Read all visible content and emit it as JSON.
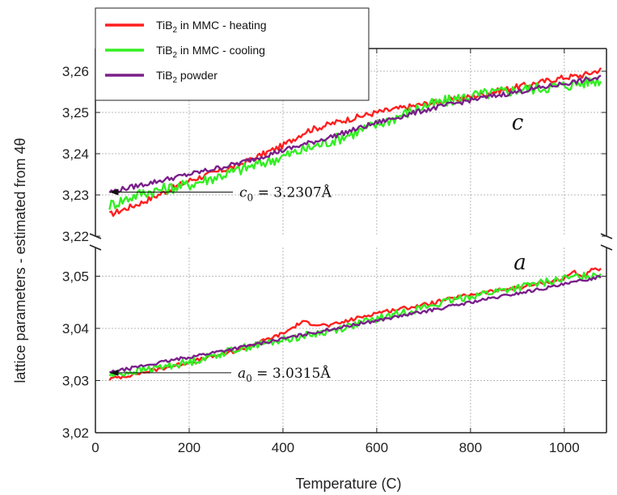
{
  "chart_data": {
    "type": "line",
    "xlabel": "Temperature (C)",
    "ylabel": "lattice parameters - estimated from 4θ",
    "xlim": [
      0,
      1090
    ],
    "x_ticks": [
      "0",
      "200",
      "400",
      "600",
      "800",
      "1000"
    ],
    "axis_break": true,
    "panels": [
      {
        "id": "c",
        "label": "c",
        "ylim": [
          3.22,
          3.2655
        ],
        "y_ticks": [
          "3,22",
          "3,23",
          "3,24",
          "3,25",
          "3,26"
        ],
        "annotation": {
          "sub": "0",
          "prefix": "c",
          "rest": " = 3.2307Å",
          "x": 30,
          "y": 3.2307
        }
      },
      {
        "id": "a",
        "label": "a",
        "ylim": [
          3.02,
          3.0555
        ],
        "y_ticks": [
          "3,02",
          "3,03",
          "3,04",
          "3,05"
        ],
        "annotation": {
          "sub": "0",
          "prefix": "a",
          "rest": " = 3.0315Å",
          "x": 30,
          "y": 3.0315
        }
      }
    ],
    "grid": true,
    "legend_position": "top-left",
    "series": [
      {
        "name": "TiB2 in MMC - heating",
        "legend_parts": {
          "pre": "TiB",
          "sub": "2",
          "post": " in MMC - heating"
        },
        "color": "#ff1f1f",
        "c": [
          [
            30,
            3.2252
          ],
          [
            100,
            3.2282
          ],
          [
            200,
            3.2335
          ],
          [
            300,
            3.237
          ],
          [
            400,
            3.242
          ],
          [
            450,
            3.2455
          ],
          [
            520,
            3.2478
          ],
          [
            600,
            3.25
          ],
          [
            700,
            3.252
          ],
          [
            800,
            3.2538
          ],
          [
            900,
            3.2562
          ],
          [
            1000,
            3.2585
          ],
          [
            1040,
            3.259
          ],
          [
            1080,
            3.2605
          ]
        ],
        "a": [
          [
            30,
            3.0303
          ],
          [
            100,
            3.0315
          ],
          [
            200,
            3.0335
          ],
          [
            300,
            3.0357
          ],
          [
            400,
            3.039
          ],
          [
            440,
            3.0412
          ],
          [
            500,
            3.0405
          ],
          [
            600,
            3.043
          ],
          [
            700,
            3.0445
          ],
          [
            800,
            3.0465
          ],
          [
            900,
            3.0478
          ],
          [
            960,
            3.0488
          ],
          [
            1000,
            3.0495
          ],
          [
            1020,
            3.051
          ],
          [
            1040,
            3.0498
          ],
          [
            1060,
            3.0512
          ],
          [
            1080,
            3.0512
          ]
        ]
      },
      {
        "name": "TiB2 in MMC - cooling",
        "legend_parts": {
          "pre": "TiB",
          "sub": "2",
          "post": " in MMC - cooling"
        },
        "color": "#33ee22",
        "c": [
          [
            30,
            3.2275
          ],
          [
            100,
            3.2305
          ],
          [
            200,
            3.2325
          ],
          [
            300,
            3.2358
          ],
          [
            400,
            3.2393
          ],
          [
            500,
            3.243
          ],
          [
            600,
            3.247
          ],
          [
            700,
            3.2515
          ],
          [
            800,
            3.254
          ],
          [
            900,
            3.2555
          ],
          [
            1000,
            3.2565
          ],
          [
            1080,
            3.258
          ]
        ],
        "a": [
          [
            30,
            3.031
          ],
          [
            100,
            3.032
          ],
          [
            200,
            3.0335
          ],
          [
            300,
            3.036
          ],
          [
            400,
            3.0378
          ],
          [
            500,
            3.0395
          ],
          [
            600,
            3.0418
          ],
          [
            700,
            3.044
          ],
          [
            800,
            3.0462
          ],
          [
            900,
            3.0478
          ],
          [
            1000,
            3.0495
          ],
          [
            1080,
            3.0505
          ]
        ]
      },
      {
        "name": "TiB2 powder",
        "legend_parts": {
          "pre": "TiB",
          "sub": "2",
          "post": " powder"
        },
        "color": "#7a1f8a",
        "c": [
          [
            30,
            3.2307
          ],
          [
            100,
            3.2325
          ],
          [
            200,
            3.235
          ],
          [
            300,
            3.2375
          ],
          [
            400,
            3.2408
          ],
          [
            500,
            3.244
          ],
          [
            600,
            3.2475
          ],
          [
            700,
            3.2505
          ],
          [
            800,
            3.253
          ],
          [
            900,
            3.255
          ],
          [
            1000,
            3.257
          ],
          [
            1080,
            3.2585
          ]
        ],
        "a": [
          [
            30,
            3.0315
          ],
          [
            100,
            3.0328
          ],
          [
            200,
            3.0345
          ],
          [
            300,
            3.0362
          ],
          [
            400,
            3.038
          ],
          [
            500,
            3.0398
          ],
          [
            600,
            3.0415
          ],
          [
            700,
            3.0432
          ],
          [
            800,
            3.045
          ],
          [
            900,
            3.0467
          ],
          [
            1000,
            3.0484
          ],
          [
            1080,
            3.05
          ]
        ]
      }
    ]
  }
}
